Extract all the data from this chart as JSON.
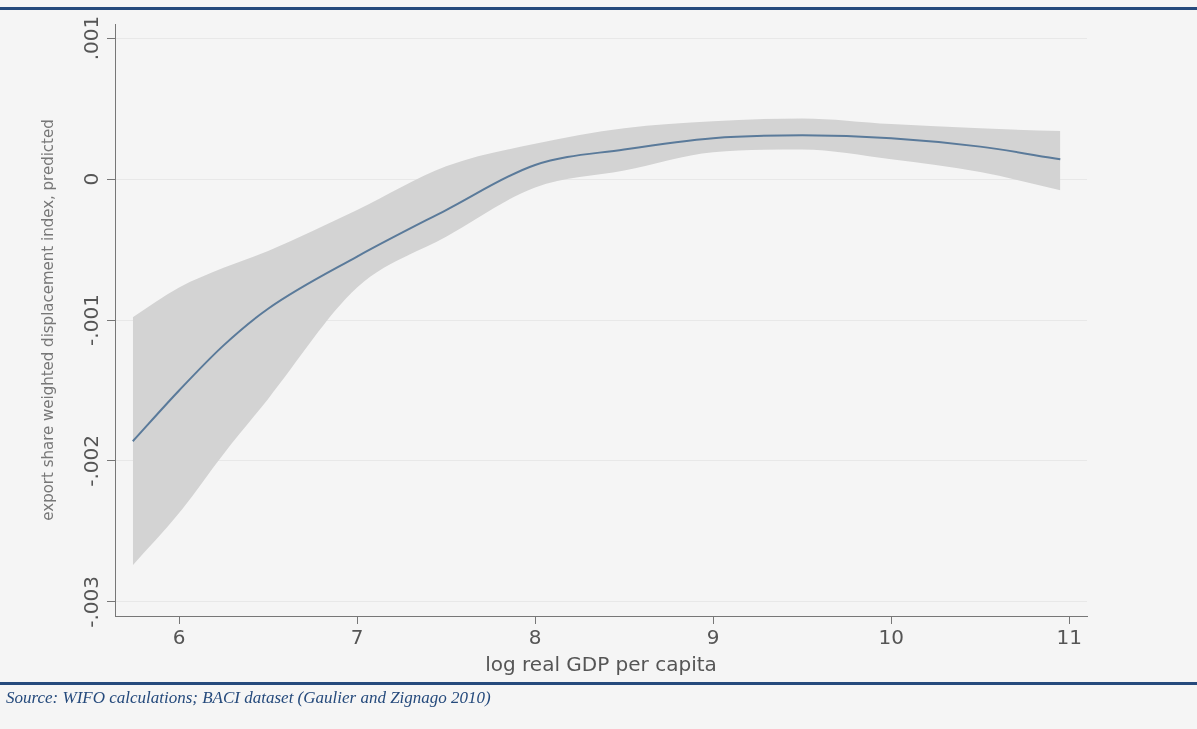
{
  "chart_data": {
    "type": "line",
    "xlabel": "log real GDP per capita",
    "ylabel": "export share weighted displacement index, predicted",
    "annotations": [
      "Source: WIFO calculations; BACI dataset (Gaulier and Zignago 2010)"
    ],
    "x": [
      5.74,
      6,
      6.25,
      6.5,
      7,
      7.5,
      8,
      8.5,
      9,
      9.5,
      10,
      10.5,
      10.95
    ],
    "series": [
      {
        "color": "#5a7a9a",
        "values": [
          -0.00186,
          -0.0015,
          -0.00118,
          -0.00092,
          -0.00055,
          -0.00022,
          0.0001,
          0.00021,
          0.00029,
          0.00031,
          0.00029,
          0.00023,
          0.00014
        ],
        "lower": [
          -0.00274,
          -0.00237,
          -0.00195,
          -0.00156,
          -0.00077,
          -0.00041,
          -6e-05,
          6e-05,
          0.00019,
          0.00021,
          0.00014,
          5e-05,
          -8e-05
        ],
        "upper": [
          -0.00098,
          -0.00077,
          -0.00063,
          -0.00051,
          -0.00022,
          9e-05,
          0.00025,
          0.00036,
          0.00041,
          0.00043,
          0.00039,
          0.00036,
          0.00034
        ]
      }
    ],
    "xlim": [
      5.64,
      11.1
    ],
    "xticks": [
      6,
      7,
      8,
      9,
      10,
      11
    ],
    "ylim": [
      -0.0031,
      0.0011
    ],
    "yticks": [
      {
        "value": -0.003,
        "label": "-.003"
      },
      {
        "value": -0.002,
        "label": "-.002"
      },
      {
        "value": -0.001,
        "label": "-.001"
      },
      {
        "value": 0,
        "label": "0"
      },
      {
        "value": 0.001,
        "label": ".001"
      }
    ],
    "grid": "y",
    "marker": "none",
    "line_style": "solid"
  }
}
